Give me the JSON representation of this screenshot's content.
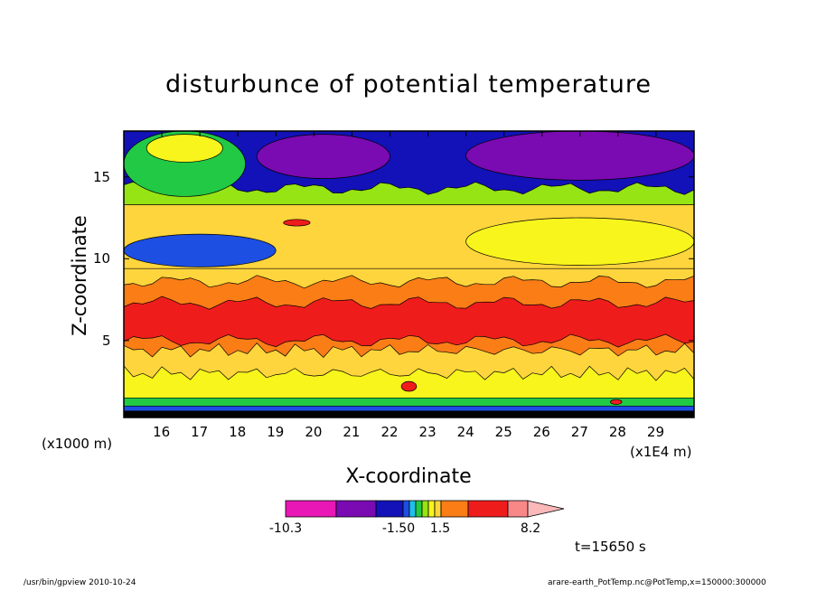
{
  "chart_data": {
    "type": "heatmap",
    "title": "disturbunce of potential temperature",
    "xlabel": "X-coordinate",
    "ylabel": "Z-coordinate",
    "x_unit": "(x1E4 m)",
    "y_unit": "(x1000 m)",
    "xlim": [
      15,
      30
    ],
    "ylim": [
      0.3,
      17.8
    ],
    "x_ticks": [
      16,
      17,
      18,
      19,
      20,
      21,
      22,
      23,
      24,
      25,
      26,
      27,
      28,
      29
    ],
    "y_ticks": [
      5,
      10,
      15
    ],
    "colorbar_labels": [
      "-10.3",
      "-1.50",
      "1.5",
      "8.2"
    ],
    "time_label": "t=15650 s",
    "palette": [
      "#e817b5",
      "#7a0ab2",
      "#1212b8",
      "#1d4fe2",
      "#1fc0e8",
      "#21c945",
      "#97e414",
      "#f7f51b",
      "#fed53c",
      "#fb7d16",
      "#ef1c1c",
      "#f88888",
      "#fbb8b8"
    ],
    "bands": [
      {
        "z_top": 0.7,
        "level": -3,
        "shape": "flat"
      },
      {
        "z_top": 1.0,
        "level": 3,
        "shape": "flat"
      },
      {
        "z_top": 1.5,
        "level": 5,
        "shape": "flat"
      },
      {
        "z_top": 3.0,
        "level": 7,
        "shape": "jagged"
      },
      {
        "z_top": 4.4,
        "level": 8,
        "shape": "jagged"
      },
      {
        "z_top": 5.0,
        "level": 9,
        "shape": "wavy"
      },
      {
        "z_top": 7.3,
        "level": 10,
        "shape": "wavy"
      },
      {
        "z_top": 8.6,
        "level": 9,
        "shape": "wavy"
      },
      {
        "z_top": 9.4,
        "level": 8,
        "shape": "flat"
      },
      {
        "z_top": 13.3,
        "level": 8,
        "shape": "flat"
      },
      {
        "z_top": 14.3,
        "level": 6,
        "shape": "wavy"
      },
      {
        "z_top": 17.8,
        "level": 2,
        "shape": "flat"
      }
    ],
    "features": [
      {
        "name": "upper-left cold blob",
        "x": [
          15.0,
          18.2
        ],
        "z": [
          13.8,
          17.8
        ],
        "level": 5
      },
      {
        "name": "upper-left warm core",
        "x": [
          15.6,
          17.6
        ],
        "z": [
          15.9,
          17.6
        ],
        "level": 7
      },
      {
        "name": "upper cold anomaly west",
        "x": [
          18.5,
          22.0
        ],
        "z": [
          14.9,
          17.6
        ],
        "level": 1
      },
      {
        "name": "upper cold anomaly east",
        "x": [
          24.0,
          30.0
        ],
        "z": [
          14.8,
          17.8
        ],
        "level": 1
      },
      {
        "name": "cold intrusion z=10",
        "x": [
          15.0,
          19.0
        ],
        "z": [
          9.5,
          11.5
        ],
        "level": 3
      },
      {
        "name": "warm layer z=10.5",
        "x": [
          24.0,
          30.0
        ],
        "z": [
          9.6,
          12.5
        ],
        "level": 7
      },
      {
        "name": "local maximum",
        "x": [
          19.2,
          19.9
        ],
        "z": [
          12.0,
          12.4
        ],
        "level": 10
      },
      {
        "name": "surface maximum",
        "x": [
          27.8,
          28.1
        ],
        "z": [
          1.1,
          1.4
        ],
        "level": 10
      },
      {
        "name": "surface maximum 2",
        "x": [
          22.3,
          22.7
        ],
        "z": [
          1.9,
          2.5
        ],
        "level": 10
      }
    ]
  },
  "footer": {
    "left": "/usr/bin/gpview   2010-10-24",
    "right": "arare-earth_PotTemp.nc@PotTemp,x=150000:300000"
  }
}
